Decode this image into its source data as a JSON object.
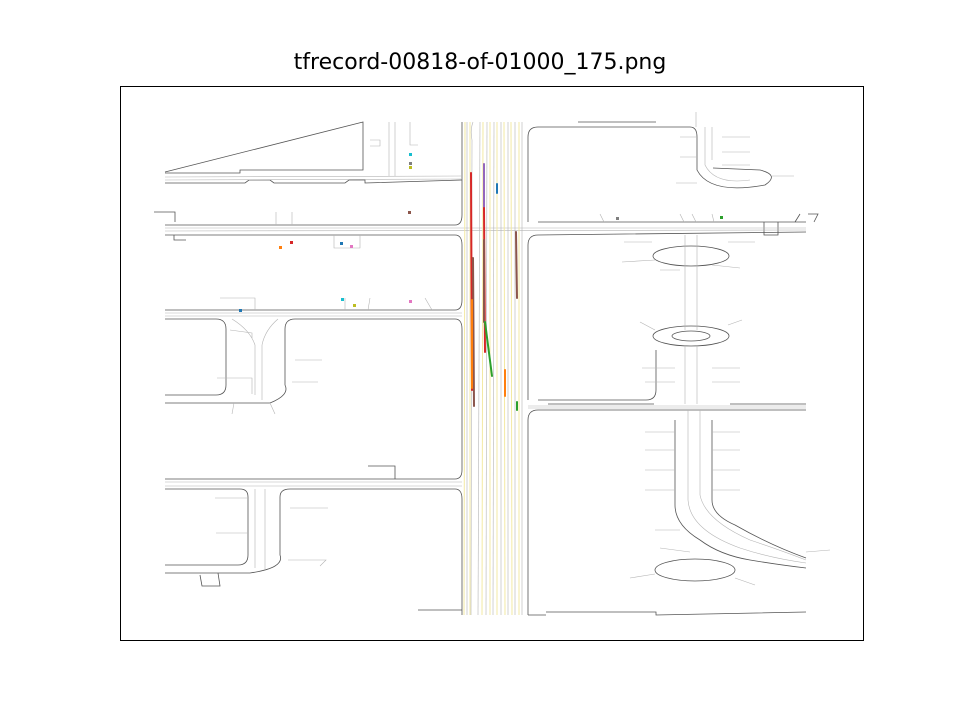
{
  "figure": {
    "title": "tfrecord-00818-of-01000_175.png"
  },
  "colors": {
    "background": "#ffffff",
    "frame": "#000000",
    "road_edge": "#555555",
    "lane_center": "#b4b4b4",
    "lane_yellow": "#f2e79a"
  },
  "agent_colors": {
    "blue": "#1f77b4",
    "orange": "#ff7f0e",
    "green": "#2ca02c",
    "red": "#d62728",
    "purple": "#9467bd",
    "brown": "#8c564b",
    "pink": "#e377c2",
    "gray": "#7f7f7f",
    "olive": "#bcbd22",
    "cyan": "#17becf"
  }
}
